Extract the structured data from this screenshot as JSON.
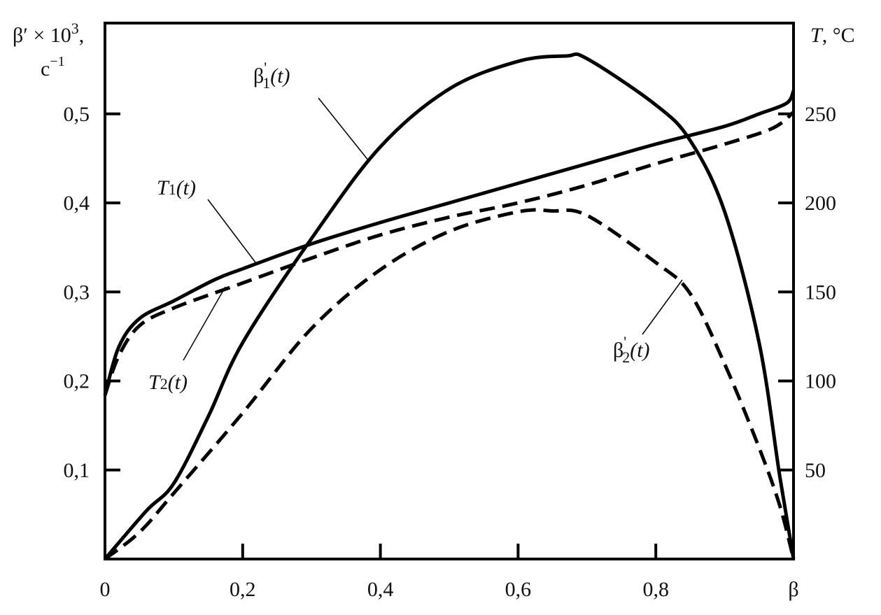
{
  "chart_data": {
    "type": "line",
    "xlabel": "β",
    "ylabel_left": "β′ × 10 3, c−1",
    "ylabel_left_parts": {
      "main": "β′ × 10",
      "exp": "3",
      "comma": ",",
      "unit": "c",
      "unit_exp": "−1"
    },
    "ylabel_right": "T, °C",
    "ylabel_right_parts": {
      "italic": "T",
      "rest": ", °C"
    },
    "xlim": [
      0,
      1
    ],
    "ylim_left": [
      0,
      0.625
    ],
    "ylim_right": [
      0,
      312.5
    ],
    "grid": false,
    "x_ticks": [
      {
        "v": 0,
        "label": "0"
      },
      {
        "v": 0.2,
        "label": "0,2"
      },
      {
        "v": 0.4,
        "label": "0,4"
      },
      {
        "v": 0.6,
        "label": "0,6"
      },
      {
        "v": 0.8,
        "label": "0,8"
      }
    ],
    "x_end_label": "β",
    "y_left_ticks": [
      {
        "v": 0.1,
        "label": "0,1"
      },
      {
        "v": 0.2,
        "label": "0,2"
      },
      {
        "v": 0.3,
        "label": "0,3"
      },
      {
        "v": 0.4,
        "label": "0,4"
      },
      {
        "v": 0.5,
        "label": "0,5"
      }
    ],
    "y_right_ticks": [
      {
        "v": 50,
        "label": "50"
      },
      {
        "v": 100,
        "label": "100"
      },
      {
        "v": 150,
        "label": "150"
      },
      {
        "v": 200,
        "label": "200"
      },
      {
        "v": 250,
        "label": "250"
      }
    ],
    "series": [
      {
        "name": "β'1(t)",
        "label_main": "β",
        "label_sup": "'",
        "label_sub": "1",
        "label_arg": "(t)",
        "axis": "left",
        "style": "solid",
        "x": [
          0,
          0.06,
          0.1,
          0.15,
          0.2,
          0.3,
          0.4,
          0.5,
          0.6,
          0.67,
          0.7,
          0.8,
          0.85,
          0.9,
          0.95,
          0.98,
          1.0
        ],
        "y": [
          0,
          0.054,
          0.085,
          0.16,
          0.243,
          0.36,
          0.463,
          0.528,
          0.559,
          0.565,
          0.562,
          0.51,
          0.47,
          0.39,
          0.243,
          0.093,
          0
        ]
      },
      {
        "name": "β'2(t)",
        "label_main": "β",
        "label_sup": "'",
        "label_sub": "2",
        "label_arg": "(t)",
        "axis": "left",
        "style": "dashed",
        "x": [
          0,
          0.05,
          0.1,
          0.2,
          0.3,
          0.4,
          0.5,
          0.6,
          0.65,
          0.7,
          0.8,
          0.85,
          0.9,
          0.95,
          0.98,
          1.0
        ],
        "y": [
          0,
          0.03,
          0.074,
          0.164,
          0.259,
          0.325,
          0.368,
          0.39,
          0.391,
          0.386,
          0.333,
          0.298,
          0.219,
          0.125,
          0.06,
          0
        ]
      },
      {
        "name": "T1(t)",
        "label_main": "T",
        "label_sub": "1",
        "label_arg": "(t)",
        "axis": "right",
        "style": "solid",
        "x": [
          0,
          0.02,
          0.05,
          0.1,
          0.16,
          0.2,
          0.3,
          0.4,
          0.5,
          0.6,
          0.7,
          0.8,
          0.9,
          0.95,
          0.99,
          1.0
        ],
        "y": [
          92,
          119,
          135,
          145,
          157,
          163,
          177,
          189,
          200,
          211,
          222,
          233,
          243,
          250,
          256,
          263
        ]
      },
      {
        "name": "T2(t)",
        "label_main": "T",
        "label_sub": "2",
        "label_arg": "(t)",
        "axis": "right",
        "style": "dashed",
        "x": [
          0,
          0.02,
          0.05,
          0.1,
          0.2,
          0.3,
          0.4,
          0.5,
          0.6,
          0.7,
          0.8,
          0.9,
          0.97,
          1.0
        ],
        "y": [
          92,
          114,
          131,
          141,
          155,
          169,
          182,
          192,
          200,
          210,
          222,
          233,
          242,
          251
        ]
      }
    ]
  }
}
